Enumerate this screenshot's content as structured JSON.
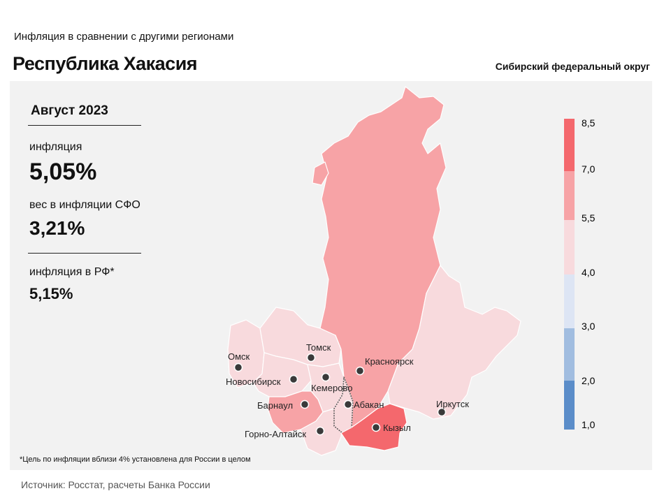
{
  "header": {
    "subtitle": "Инфляция  в сравнении  с другими  регионами",
    "title": "Республика Хакасия",
    "district": "Сибирский федеральный округ"
  },
  "stats": {
    "period": "Август 2023",
    "inflation_label": "инфляция",
    "inflation_value": "5,05%",
    "weight_label": "вес в инфляции  СФО",
    "weight_value": "3,21%",
    "rf_label": "инфляция  в РФ*",
    "rf_value": "5,15%"
  },
  "legend": {
    "ticks": [
      "8,5",
      "7,0",
      "5,5",
      "4,0",
      "3,0",
      "2,0",
      "1,0"
    ],
    "colors": [
      "#f4686d",
      "#f7a3a6",
      "#f8dadd",
      "#dde5f4",
      "#a1bde0",
      "#5b8dc9"
    ]
  },
  "map": {
    "cities": [
      {
        "name": "Омск"
      },
      {
        "name": "Томск"
      },
      {
        "name": "Новосибирск"
      },
      {
        "name": "Кемерово"
      },
      {
        "name": "Красноярск"
      },
      {
        "name": "Барнаул"
      },
      {
        "name": "Абакан"
      },
      {
        "name": "Горно-Алтайск"
      },
      {
        "name": "Кызыл"
      },
      {
        "name": "Иркутск"
      }
    ],
    "region_colors": {
      "omsk": "#f8dadd",
      "tomsk": "#f8dadd",
      "novosibirsk": "#f8dadd",
      "kemerovo": "#f8dadd",
      "krasnoyarsk": "#f7a3a6",
      "altai_krai": "#f7a3a6",
      "altai_rep": "#f8dadd",
      "khakassia": "#f8dadd",
      "tyva": "#f4686d",
      "irkutsk": "#f8dadd"
    }
  },
  "footnote": "*Цель по инфляции вблизи 4% установлена для России в целом",
  "source": "Источник: Росстат, расчеты Банка России"
}
